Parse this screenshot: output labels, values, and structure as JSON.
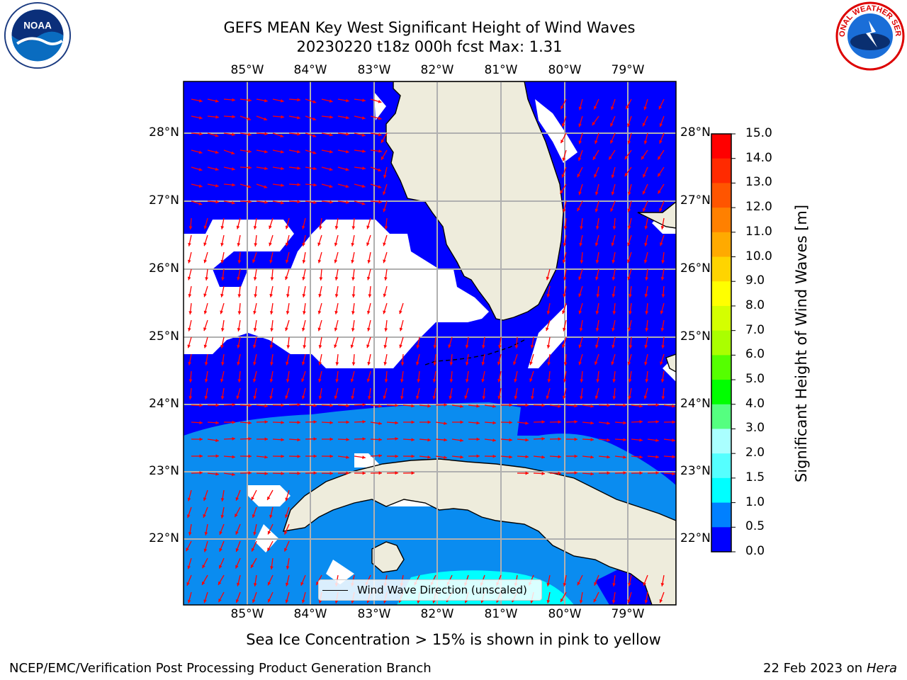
{
  "title": {
    "line1": "GEFS MEAN Key West Significant Height of Wind Waves",
    "line2": "20230220 t18z 000h fcst   Max: 1.31"
  },
  "logos": {
    "left": "NOAA",
    "right": "NATIONAL WEATHER SERVICE"
  },
  "map": {
    "lon_ticks": [
      "85°W",
      "84°W",
      "83°W",
      "82°W",
      "81°W",
      "80°W",
      "79°W"
    ],
    "lat_ticks": [
      "28°N",
      "27°N",
      "26°N",
      "25°N",
      "24°N",
      "23°N",
      "22°N"
    ],
    "lon_range": [
      -86.0,
      -78.0
    ],
    "lat_range": [
      21.0,
      28.8
    ],
    "legend_label": "Wind Wave Direction (unscaled)",
    "arrow_color": "#ff0000",
    "land_color": "#eeecdc",
    "field_colors": {
      "0.0-0.5": "#0000ff",
      "0.5-1.0": "#0a8cf0",
      "1.0-1.5": "#00ffff"
    }
  },
  "colorbar": {
    "label": "Significant Height of Wind Waves [m]",
    "ticks": [
      "15.0",
      "14.0",
      "13.0",
      "12.0",
      "11.0",
      "10.0",
      "9.0",
      "8.0",
      "7.0",
      "6.0",
      "5.0",
      "4.0",
      "3.0",
      "2.0",
      "1.5",
      "1.0",
      "0.5",
      "0.0"
    ],
    "colors": [
      "#ff0000",
      "#ff2a00",
      "#ff5500",
      "#ff8000",
      "#ffaa00",
      "#ffd400",
      "#ffff00",
      "#d4ff00",
      "#aaff00",
      "#55ff00",
      "#00ff00",
      "#55ff80",
      "#aaffff",
      "#55ffff",
      "#00ffff",
      "#0080ff",
      "#0000ff"
    ]
  },
  "note": "Sea Ice Concentration > 15% is shown in pink to yellow",
  "footer": {
    "left": "NCEP/EMC/Verification Post Processing Product Generation Branch",
    "right_date": "22 Feb 2023 on",
    "right_host": "Hera"
  }
}
